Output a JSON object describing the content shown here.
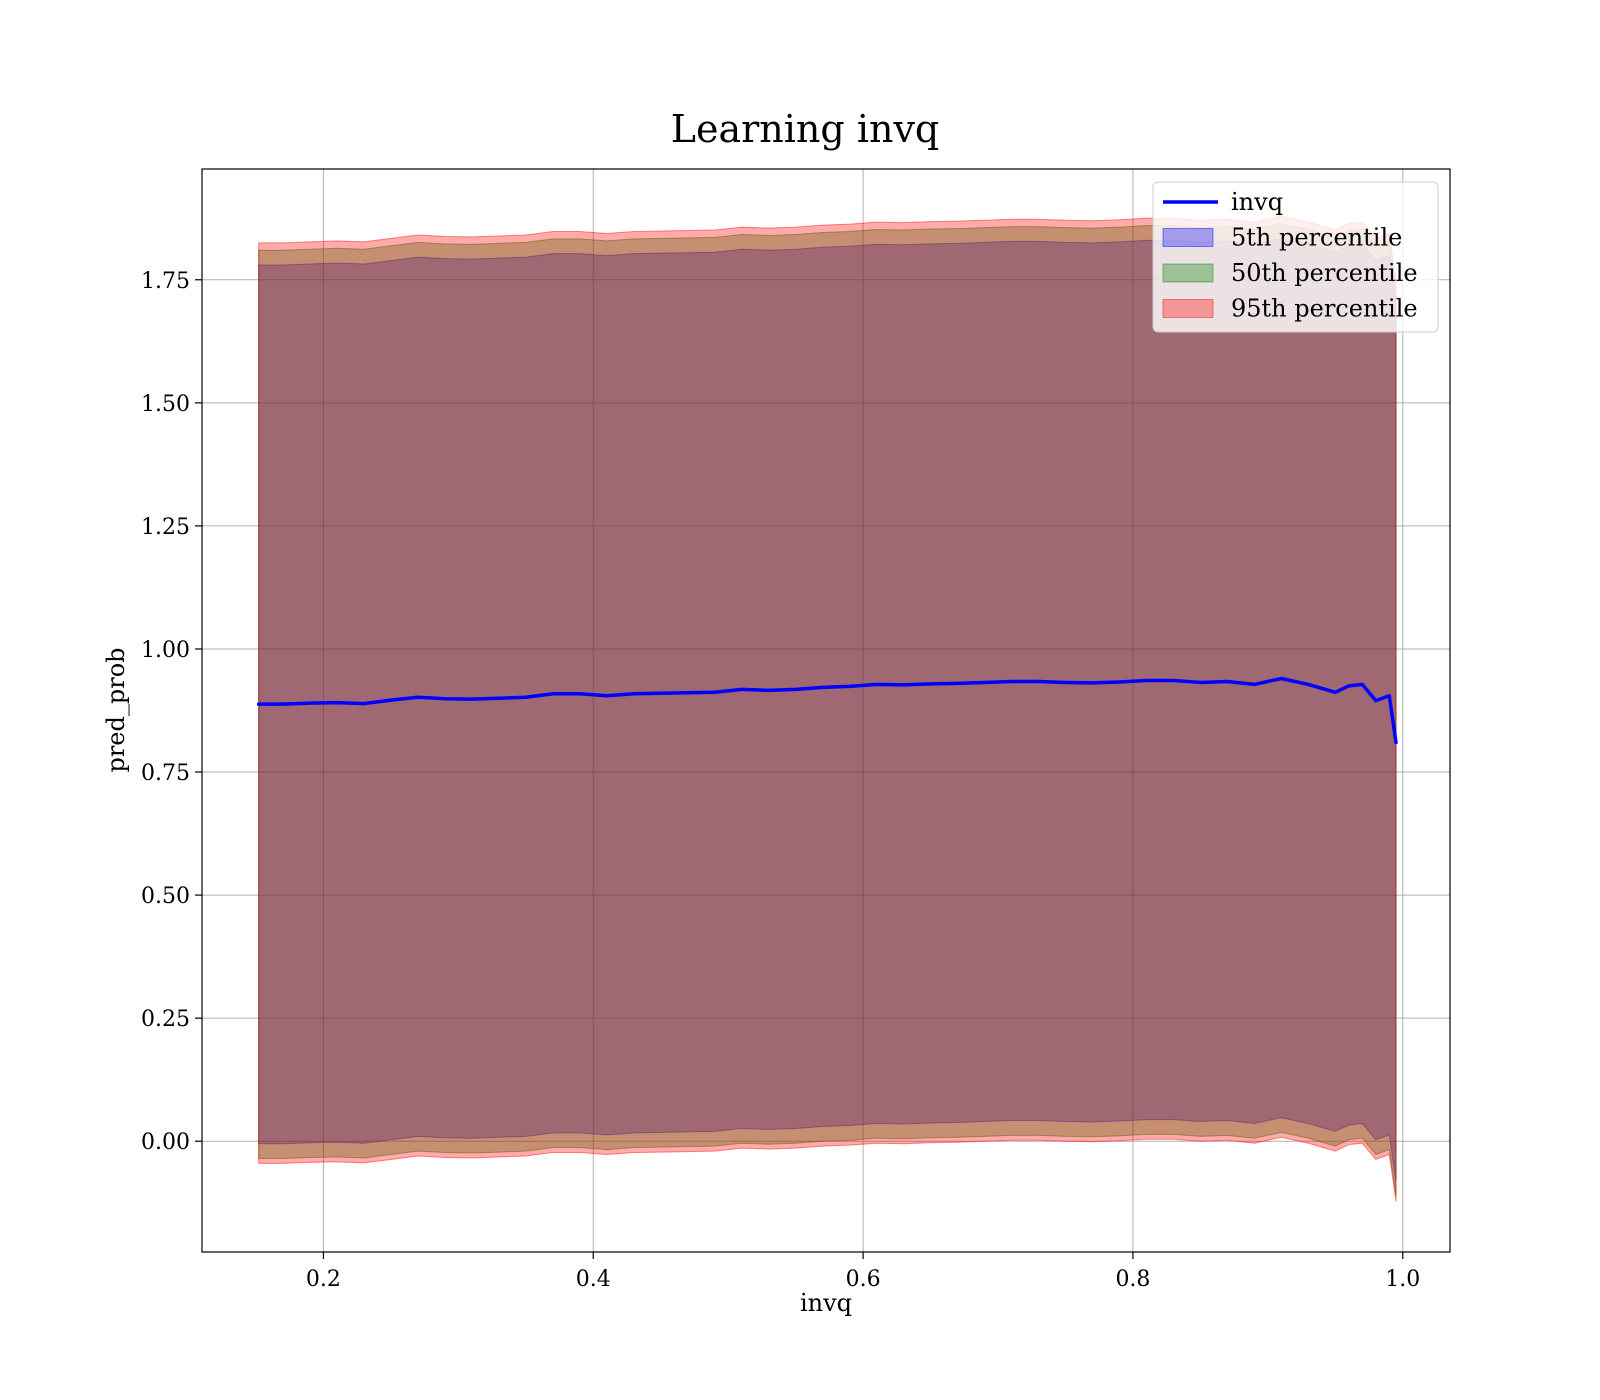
{
  "chart_data": {
    "type": "area",
    "title": "Learning invq",
    "xlabel": "invq",
    "ylabel": "pred_prob",
    "xlim": [
      0.11,
      1.035
    ],
    "ylim": [
      -0.225,
      1.975
    ],
    "xticks": [
      0.2,
      0.4,
      0.6,
      0.8,
      1.0
    ],
    "xtick_labels": [
      "0.2",
      "0.4",
      "0.6",
      "0.8",
      "1.0"
    ],
    "yticks": [
      0.0,
      0.25,
      0.5,
      0.75,
      1.0,
      1.25,
      1.5,
      1.75
    ],
    "ytick_labels": [
      "0.00",
      "0.25",
      "0.50",
      "0.75",
      "1.00",
      "1.25",
      "1.50",
      "1.75"
    ],
    "grid": true,
    "legend_position": "top-right",
    "colors": {
      "line": "#0000ff",
      "p5": "#0000ff",
      "p50": "#008000",
      "p95": "#ff0000"
    },
    "x": [
      0.152,
      0.17,
      0.19,
      0.21,
      0.23,
      0.25,
      0.27,
      0.29,
      0.31,
      0.33,
      0.35,
      0.37,
      0.39,
      0.41,
      0.43,
      0.45,
      0.47,
      0.49,
      0.51,
      0.53,
      0.55,
      0.57,
      0.59,
      0.61,
      0.63,
      0.65,
      0.67,
      0.69,
      0.71,
      0.73,
      0.75,
      0.77,
      0.79,
      0.81,
      0.83,
      0.85,
      0.87,
      0.89,
      0.91,
      0.93,
      0.95,
      0.96,
      0.97,
      0.98,
      0.99,
      0.995
    ],
    "series": [
      {
        "name": "invq",
        "role": "line",
        "values": [
          0.888,
          0.888,
          0.89,
          0.891,
          0.889,
          0.896,
          0.902,
          0.899,
          0.898,
          0.9,
          0.902,
          0.909,
          0.909,
          0.905,
          0.909,
          0.91,
          0.911,
          0.912,
          0.918,
          0.916,
          0.918,
          0.922,
          0.924,
          0.928,
          0.927,
          0.929,
          0.93,
          0.932,
          0.934,
          0.934,
          0.932,
          0.931,
          0.933,
          0.936,
          0.936,
          0.932,
          0.934,
          0.928,
          0.94,
          0.928,
          0.912,
          0.925,
          0.928,
          0.895,
          0.905,
          0.81
        ]
      },
      {
        "name": "5th percentile",
        "lower": [
          -0.005,
          -0.005,
          -0.003,
          -0.002,
          -0.004,
          0.003,
          0.01,
          0.007,
          0.006,
          0.008,
          0.01,
          0.017,
          0.017,
          0.013,
          0.017,
          0.018,
          0.019,
          0.02,
          0.026,
          0.024,
          0.026,
          0.03,
          0.032,
          0.036,
          0.035,
          0.037,
          0.038,
          0.04,
          0.042,
          0.042,
          0.04,
          0.039,
          0.041,
          0.044,
          0.044,
          0.04,
          0.042,
          0.036,
          0.048,
          0.036,
          0.02,
          0.033,
          0.036,
          0.003,
          0.013,
          -0.082
        ],
        "upper": [
          1.78,
          1.78,
          1.782,
          1.784,
          1.782,
          1.789,
          1.796,
          1.793,
          1.792,
          1.794,
          1.796,
          1.803,
          1.803,
          1.799,
          1.803,
          1.804,
          1.805,
          1.806,
          1.812,
          1.81,
          1.812,
          1.816,
          1.818,
          1.822,
          1.821,
          1.823,
          1.824,
          1.826,
          1.828,
          1.828,
          1.826,
          1.825,
          1.827,
          1.83,
          1.83,
          1.826,
          1.828,
          1.822,
          1.834,
          1.822,
          1.806,
          1.819,
          1.822,
          1.789,
          1.799,
          1.704
        ]
      },
      {
        "name": "50th percentile",
        "lower": [
          -0.035,
          -0.035,
          -0.033,
          -0.032,
          -0.034,
          -0.027,
          -0.02,
          -0.023,
          -0.024,
          -0.022,
          -0.02,
          -0.013,
          -0.013,
          -0.017,
          -0.013,
          -0.012,
          -0.011,
          -0.01,
          -0.004,
          -0.006,
          -0.004,
          0.0,
          0.002,
          0.006,
          0.005,
          0.007,
          0.008,
          0.01,
          0.012,
          0.012,
          0.01,
          0.009,
          0.011,
          0.014,
          0.014,
          0.01,
          0.012,
          0.006,
          0.018,
          0.006,
          -0.01,
          0.003,
          0.006,
          -0.027,
          -0.017,
          -0.112
        ],
        "upper": [
          1.81,
          1.81,
          1.812,
          1.814,
          1.812,
          1.819,
          1.826,
          1.823,
          1.822,
          1.824,
          1.826,
          1.833,
          1.833,
          1.829,
          1.833,
          1.834,
          1.835,
          1.836,
          1.842,
          1.84,
          1.842,
          1.846,
          1.848,
          1.852,
          1.851,
          1.853,
          1.854,
          1.856,
          1.858,
          1.858,
          1.856,
          1.855,
          1.857,
          1.86,
          1.86,
          1.856,
          1.858,
          1.852,
          1.864,
          1.852,
          1.836,
          1.849,
          1.852,
          1.819,
          1.829,
          1.734
        ]
      },
      {
        "name": "95th percentile",
        "lower": [
          -0.045,
          -0.045,
          -0.043,
          -0.042,
          -0.044,
          -0.037,
          -0.03,
          -0.033,
          -0.034,
          -0.032,
          -0.03,
          -0.023,
          -0.023,
          -0.027,
          -0.023,
          -0.022,
          -0.021,
          -0.02,
          -0.014,
          -0.016,
          -0.014,
          -0.01,
          -0.008,
          -0.004,
          -0.005,
          -0.003,
          -0.002,
          0.0,
          0.002,
          0.002,
          0.0,
          -0.001,
          0.001,
          0.004,
          0.004,
          0.0,
          0.002,
          -0.004,
          0.008,
          -0.004,
          -0.02,
          -0.007,
          -0.004,
          -0.037,
          -0.027,
          -0.122
        ],
        "upper": [
          1.825,
          1.825,
          1.827,
          1.829,
          1.827,
          1.834,
          1.841,
          1.838,
          1.837,
          1.839,
          1.841,
          1.848,
          1.848,
          1.844,
          1.848,
          1.849,
          1.85,
          1.851,
          1.857,
          1.855,
          1.857,
          1.861,
          1.863,
          1.867,
          1.866,
          1.868,
          1.869,
          1.871,
          1.873,
          1.873,
          1.871,
          1.87,
          1.872,
          1.875,
          1.875,
          1.871,
          1.873,
          1.867,
          1.879,
          1.867,
          1.851,
          1.864,
          1.867,
          1.834,
          1.844,
          1.749
        ]
      }
    ],
    "legend": [
      "invq",
      "5th percentile",
      "50th percentile",
      "95th percentile"
    ]
  }
}
